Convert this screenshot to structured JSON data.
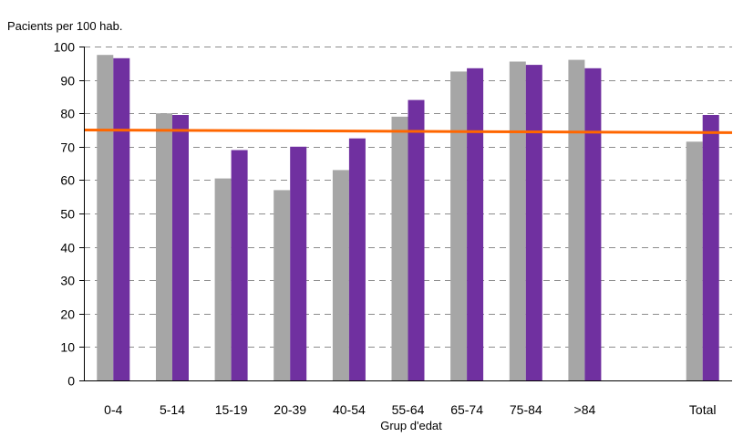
{
  "chart_data": {
    "type": "bar",
    "ylabel": "Pacients per 100 hab.",
    "xlabel": "Grup d'edat",
    "ylim": [
      0,
      100
    ],
    "yticks": [
      0,
      10,
      20,
      30,
      40,
      50,
      60,
      70,
      80,
      90,
      100
    ],
    "grid": "horizontal-dashed",
    "categories": [
      "0-4",
      "5-14",
      "15-19",
      "20-39",
      "40-54",
      "55-64",
      "65-74",
      "75-84",
      ">84",
      "",
      "Total"
    ],
    "series": [
      {
        "color": "#a6a6a6",
        "values": [
          97.5,
          80,
          60.5,
          57,
          63,
          79,
          92.5,
          95.5,
          96,
          null,
          71.5
        ]
      },
      {
        "color": "#7030a0",
        "values": [
          96.5,
          79.5,
          69,
          70,
          72.5,
          84,
          93.5,
          94.5,
          93.5,
          null,
          79.5
        ]
      }
    ],
    "reference_line": {
      "color": "#ff6600",
      "start": 75,
      "end": 74.2
    }
  }
}
